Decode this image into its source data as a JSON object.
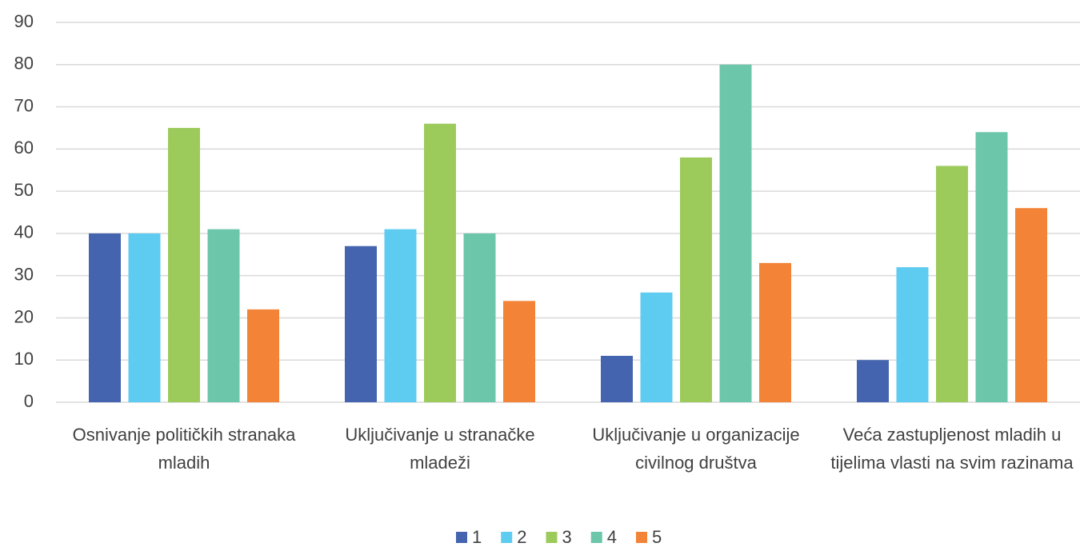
{
  "chart_data": {
    "type": "bar",
    "categories": [
      "Osnivanje političkih stranaka mladih",
      "Uključivanje u stranačke mladeži",
      "Uključivanje u organizacije civilnog društva",
      "Veća zastupljenost mladih u tijelima vlasti na svim razinama"
    ],
    "series": [
      {
        "name": "1",
        "color": "#4464b0",
        "values": [
          40,
          37,
          11,
          10
        ]
      },
      {
        "name": "2",
        "color": "#5ecbf0",
        "values": [
          40,
          41,
          26,
          32
        ]
      },
      {
        "name": "3",
        "color": "#9ccb5c",
        "values": [
          65,
          66,
          58,
          56
        ]
      },
      {
        "name": "4",
        "color": "#6cc6aa",
        "values": [
          41,
          40,
          80,
          64
        ]
      },
      {
        "name": "5",
        "color": "#f28337",
        "values": [
          22,
          24,
          33,
          46
        ]
      }
    ],
    "ylim": [
      0,
      90
    ],
    "yticks": [
      0,
      10,
      20,
      30,
      40,
      50,
      60,
      70,
      80,
      90
    ],
    "grid": true,
    "legend": "bottom"
  }
}
